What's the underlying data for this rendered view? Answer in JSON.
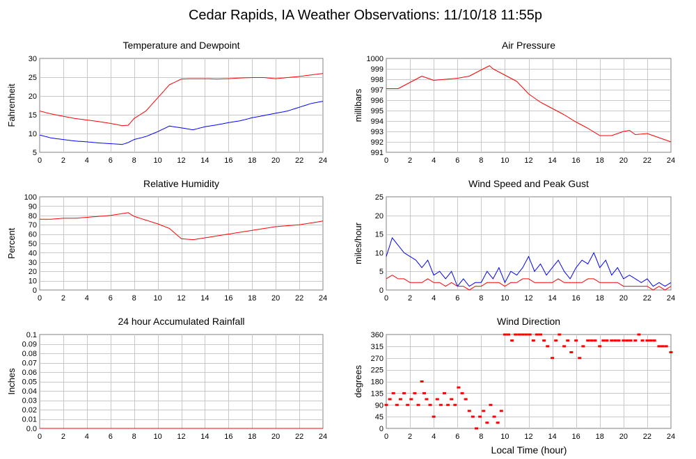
{
  "page_title": "Cedar Rapids, IA Weather Observations: 11/10/18 11:55p",
  "shared_xlabel": "Local Time (hour)",
  "colors": {
    "red": "#ff0000",
    "blue": "#0000ff",
    "grid": "#c8c8c8",
    "frame": "#808080"
  },
  "chart_data": [
    {
      "id": "temp",
      "type": "line",
      "title": "Temperature and Dewpoint",
      "ylabel": "Fahrenheit",
      "xlabel": "",
      "xlim": [
        0,
        24
      ],
      "ylim": [
        5,
        30
      ],
      "xticks": [
        0,
        2,
        4,
        6,
        8,
        10,
        12,
        14,
        16,
        18,
        20,
        22,
        24
      ],
      "yticks": [
        5,
        10,
        15,
        20,
        25,
        30
      ],
      "grid": true,
      "series": [
        {
          "color": "#ff0000",
          "x": [
            0,
            1,
            2,
            3,
            4,
            5,
            6,
            7,
            7.5,
            8,
            9,
            10,
            11,
            12,
            13,
            14,
            15,
            16,
            17,
            18,
            19,
            20,
            21,
            22,
            23,
            24
          ],
          "values": [
            16.0,
            15.2,
            14.6,
            14.0,
            13.6,
            13.2,
            12.7,
            12.1,
            12.2,
            14.0,
            16.0,
            19.5,
            23.0,
            24.5,
            24.6,
            24.6,
            24.5,
            24.6,
            24.8,
            24.9,
            24.9,
            24.6,
            24.9,
            25.2,
            25.6,
            26.0
          ]
        },
        {
          "color": "#0000ff",
          "x": [
            0,
            1,
            2,
            3,
            4,
            5,
            6,
            7,
            7.5,
            8,
            9,
            10,
            11,
            12,
            13,
            14,
            15,
            16,
            17,
            18,
            19,
            20,
            21,
            22,
            23,
            24
          ],
          "values": [
            9.6,
            8.8,
            8.4,
            8.0,
            7.8,
            7.5,
            7.3,
            7.1,
            7.6,
            8.4,
            9.2,
            10.5,
            12.0,
            11.5,
            11.0,
            11.8,
            12.3,
            12.9,
            13.4,
            14.2,
            14.8,
            15.4,
            16.0,
            17.0,
            18.0,
            18.6
          ]
        }
      ]
    },
    {
      "id": "pres",
      "type": "line",
      "title": "Air Pressure",
      "ylabel": "millibars",
      "xlabel": "",
      "xlim": [
        0,
        24
      ],
      "ylim": [
        991,
        1000
      ],
      "xticks": [
        0,
        2,
        4,
        6,
        8,
        10,
        12,
        14,
        16,
        18,
        20,
        22,
        24
      ],
      "yticks": [
        991,
        992,
        993,
        994,
        995,
        996,
        997,
        998,
        999,
        1000
      ],
      "grid": true,
      "series": [
        {
          "color": "#ff0000",
          "x": [
            0,
            1,
            2,
            3,
            3.5,
            4,
            5,
            6,
            7,
            8,
            8.7,
            9,
            10,
            11,
            12,
            13,
            14,
            15,
            16,
            17,
            18,
            19,
            20,
            20.5,
            21,
            22,
            23,
            24
          ],
          "values": [
            997.1,
            997.1,
            997.7,
            998.3,
            998.1,
            997.9,
            998.0,
            998.1,
            998.3,
            998.9,
            999.3,
            999.0,
            998.4,
            997.8,
            996.6,
            995.8,
            995.2,
            994.6,
            993.9,
            993.3,
            992.6,
            992.6,
            993.0,
            993.1,
            992.7,
            992.8,
            992.4,
            992.0
          ]
        }
      ]
    },
    {
      "id": "rh",
      "type": "line",
      "title": "Relative Humidity",
      "ylabel": "Percent",
      "xlabel": "",
      "xlim": [
        0,
        24
      ],
      "ylim": [
        0,
        100
      ],
      "xticks": [
        0,
        2,
        4,
        6,
        8,
        10,
        12,
        14,
        16,
        18,
        20,
        22,
        24
      ],
      "yticks": [
        0,
        10,
        20,
        30,
        40,
        50,
        60,
        70,
        80,
        90,
        100
      ],
      "grid": true,
      "series": [
        {
          "color": "#ff0000",
          "x": [
            0,
            1,
            2,
            3,
            4,
            5,
            6,
            7,
            7.5,
            8,
            9,
            10,
            11,
            12,
            13,
            14,
            15,
            16,
            17,
            18,
            19,
            20,
            21,
            22,
            23,
            24
          ],
          "values": [
            76,
            76,
            77,
            77,
            78,
            79,
            80,
            82,
            83,
            79,
            75,
            71,
            66,
            55,
            54,
            56,
            58,
            60,
            62,
            64,
            66,
            68,
            69,
            70,
            72,
            74
          ]
        }
      ]
    },
    {
      "id": "wind",
      "type": "line",
      "title": "Wind Speed and Peak Gust",
      "ylabel": "miles/hour",
      "xlabel": "",
      "xlim": [
        0,
        24
      ],
      "ylim": [
        0,
        25
      ],
      "xticks": [
        0,
        2,
        4,
        6,
        8,
        10,
        12,
        14,
        16,
        18,
        20,
        22,
        24
      ],
      "yticks": [
        0,
        5,
        10,
        15,
        20,
        25
      ],
      "grid": true,
      "series": [
        {
          "color": "#0000ff",
          "x": [
            0,
            0.5,
            1,
            1.5,
            2,
            2.5,
            3,
            3.5,
            4,
            4.5,
            5,
            5.5,
            6,
            6.5,
            7,
            7.5,
            8,
            8.5,
            9,
            9.5,
            10,
            10.5,
            11,
            11.5,
            12,
            12.5,
            13,
            13.5,
            14,
            14.5,
            15,
            15.5,
            16,
            16.5,
            17,
            17.5,
            18,
            18.5,
            19,
            19.5,
            20,
            20.5,
            21,
            21.5,
            22,
            22.5,
            23,
            23.5,
            24
          ],
          "values": [
            9,
            14,
            12,
            10,
            9,
            8,
            6,
            8,
            4,
            5,
            3,
            5,
            1,
            3,
            1,
            2,
            2,
            5,
            3,
            6,
            2,
            5,
            4,
            6,
            9,
            5,
            7,
            4,
            6,
            8,
            5,
            3,
            6,
            8,
            7,
            10,
            6,
            8,
            4,
            6,
            3,
            4,
            3,
            2,
            3,
            1,
            2,
            1,
            2
          ]
        },
        {
          "color": "#ff0000",
          "x": [
            0,
            0.5,
            1,
            1.5,
            2,
            2.5,
            3,
            3.5,
            4,
            4.5,
            5,
            5.5,
            6,
            6.5,
            7,
            7.5,
            8,
            8.5,
            9,
            9.5,
            10,
            10.5,
            11,
            11.5,
            12,
            12.5,
            13,
            13.5,
            14,
            14.5,
            15,
            15.5,
            16,
            16.5,
            17,
            17.5,
            18,
            18.5,
            19,
            19.5,
            20,
            20.5,
            21,
            21.5,
            22,
            22.5,
            23,
            23.5,
            24
          ],
          "values": [
            3,
            4,
            3,
            3,
            2,
            2,
            2,
            3,
            2,
            2,
            1,
            2,
            1,
            1,
            0,
            1,
            1,
            2,
            2,
            2,
            1,
            2,
            2,
            3,
            3,
            2,
            2,
            2,
            2,
            3,
            2,
            2,
            2,
            2,
            3,
            3,
            2,
            2,
            2,
            2,
            1,
            1,
            1,
            1,
            1,
            0,
            1,
            0,
            1
          ]
        }
      ]
    },
    {
      "id": "rain",
      "type": "line",
      "title": "24 hour Accumulated Rainfall",
      "ylabel": "Inches",
      "xlabel": "",
      "xlim": [
        0,
        24
      ],
      "ylim": [
        0,
        0.1
      ],
      "xticks": [
        0,
        2,
        4,
        6,
        8,
        10,
        12,
        14,
        16,
        18,
        20,
        22,
        24
      ],
      "yticks": [
        0.0,
        0.01,
        0.02,
        0.03,
        0.04,
        0.05,
        0.06,
        0.07,
        0.08,
        0.09,
        0.1
      ],
      "ytick_labels": [
        "0.0",
        "0.01",
        "0.02",
        "0.03",
        "0.04",
        "0.05",
        "0.06",
        "0.07",
        "0.08",
        "0.09",
        "0.1"
      ],
      "grid": true,
      "series": [
        {
          "color": "#ff0000",
          "x": [
            0,
            24
          ],
          "values": [
            0,
            0
          ]
        }
      ]
    },
    {
      "id": "wdir",
      "type": "scatter",
      "title": "Wind Direction",
      "ylabel": "degrees",
      "xlabel": "Local Time (hour)",
      "xlim": [
        0,
        24
      ],
      "ylim": [
        0,
        360
      ],
      "xticks": [
        0,
        2,
        4,
        6,
        8,
        10,
        12,
        14,
        16,
        18,
        20,
        22,
        24
      ],
      "yticks": [
        0,
        45,
        90,
        135,
        180,
        225,
        270,
        315,
        360
      ],
      "grid": true,
      "series": [
        {
          "color": "#ff0000",
          "x": [
            0,
            0.3,
            0.6,
            0.9,
            1.2,
            1.5,
            1.8,
            2.1,
            2.4,
            2.7,
            3.0,
            3.2,
            3.4,
            3.7,
            4.0,
            4.3,
            4.6,
            4.9,
            5.2,
            5.5,
            5.8,
            6.1,
            6.4,
            6.7,
            7.0,
            7.3,
            7.6,
            7.9,
            8.2,
            8.5,
            8.8,
            9.1,
            9.4,
            9.7,
            10.0,
            10.3,
            10.6,
            10.9,
            11.2,
            11.5,
            11.8,
            12.1,
            12.4,
            12.7,
            13.0,
            13.3,
            13.6,
            14.0,
            14.3,
            14.6,
            15.0,
            15.3,
            15.6,
            16.0,
            16.3,
            16.6,
            17.0,
            17.3,
            17.6,
            18.0,
            18.3,
            18.6,
            19.0,
            19.3,
            19.6,
            20.0,
            20.3,
            20.6,
            21.0,
            21.3,
            21.6,
            22.0,
            22.3,
            22.6,
            23.0,
            23.3,
            23.6,
            24.0
          ],
          "values": [
            90,
            112,
            135,
            90,
            112,
            135,
            90,
            112,
            135,
            90,
            180,
            135,
            112,
            90,
            45,
            112,
            90,
            135,
            90,
            112,
            90,
            157,
            135,
            112,
            67,
            45,
            0,
            45,
            67,
            22,
            90,
            45,
            22,
            67,
            360,
            360,
            337,
            360,
            360,
            360,
            360,
            360,
            337,
            360,
            360,
            337,
            315,
            270,
            337,
            360,
            315,
            337,
            292,
            337,
            270,
            315,
            337,
            337,
            337,
            315,
            337,
            337,
            337,
            337,
            337,
            337,
            337,
            337,
            337,
            360,
            337,
            337,
            337,
            337,
            315,
            315,
            315,
            292
          ]
        }
      ]
    }
  ]
}
